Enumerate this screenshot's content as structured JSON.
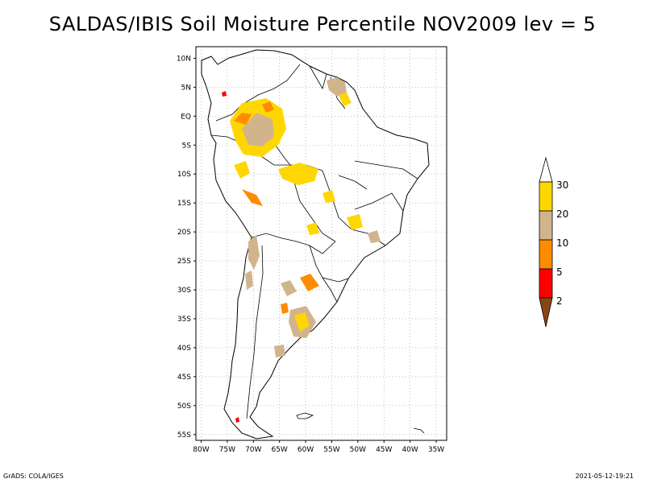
{
  "title": "SALDAS/IBIS Soil Moisture Percentile NOV2009 lev = 5",
  "footer": {
    "left": "GrADS: COLA/IGES",
    "right": "2021-05-12-19:21"
  },
  "map": {
    "lat_range": [
      -56,
      12
    ],
    "lon_range": [
      -81,
      -33
    ],
    "lat_ticks": [
      {
        "value": 10,
        "label": "10N"
      },
      {
        "value": 5,
        "label": "5N"
      },
      {
        "value": 0,
        "label": "EQ"
      },
      {
        "value": -5,
        "label": "5S"
      },
      {
        "value": -10,
        "label": "10S"
      },
      {
        "value": -15,
        "label": "15S"
      },
      {
        "value": -20,
        "label": "20S"
      },
      {
        "value": -25,
        "label": "25S"
      },
      {
        "value": -30,
        "label": "30S"
      },
      {
        "value": -35,
        "label": "35S"
      },
      {
        "value": -40,
        "label": "40S"
      },
      {
        "value": -45,
        "label": "45S"
      },
      {
        "value": -50,
        "label": "50S"
      },
      {
        "value": -55,
        "label": "55S"
      }
    ],
    "lon_ticks": [
      {
        "value": -80,
        "label": "80W"
      },
      {
        "value": -75,
        "label": "75W"
      },
      {
        "value": -70,
        "label": "70W"
      },
      {
        "value": -65,
        "label": "65W"
      },
      {
        "value": -60,
        "label": "60W"
      },
      {
        "value": -55,
        "label": "55W"
      },
      {
        "value": -50,
        "label": "50W"
      },
      {
        "value": -45,
        "label": "45W"
      },
      {
        "value": -40,
        "label": "40W"
      },
      {
        "value": -35,
        "label": "35W"
      }
    ],
    "grid": true
  },
  "colorbar": {
    "labels": [
      "2",
      "5",
      "10",
      "20",
      "30"
    ],
    "colors": {
      "below_2": "#8b4513",
      "2_5": "#ff0000",
      "5_10": "#ff8c00",
      "10_20": "#d2b48c",
      "20_30": "#ffd700",
      "above_30": "#ffffff"
    }
  }
}
